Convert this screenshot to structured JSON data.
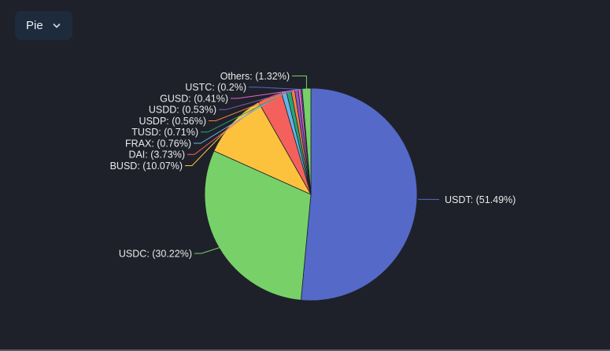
{
  "controls": {
    "chart_type_label": "Pie",
    "chevron_icon": "chevron-down"
  },
  "colors": {
    "background": "#1f212a",
    "button_bg": "#1e2b3d",
    "button_text": "#eceff3",
    "label_text": "#e8eaec",
    "bottom_bar": "#575c66"
  },
  "chart_data": {
    "type": "pie",
    "title": "",
    "legend": "none",
    "start_angle": "top",
    "direction": "clockwise",
    "center": [
      395,
      247
    ],
    "radius": 135,
    "label_format": "NAME: (VALUE%)",
    "items": [
      {
        "name": "USDT",
        "value": 51.49,
        "display": "USDT: (51.49%)",
        "color": "#5569c8"
      },
      {
        "name": "USDC",
        "value": 30.22,
        "display": "USDC: (30.22%)",
        "color": "#77d168"
      },
      {
        "name": "BUSD",
        "value": 10.07,
        "display": "BUSD: (10.07%)",
        "color": "#fcc23d"
      },
      {
        "name": "DAI",
        "value": 3.73,
        "display": "DAI: (3.73%)",
        "color": "#f4615d"
      },
      {
        "name": "FRAX",
        "value": 0.76,
        "display": "FRAX: (0.76%)",
        "color": "#62b6e7"
      },
      {
        "name": "TUSD",
        "value": 0.71,
        "display": "TUSD: (0.71%)",
        "color": "#27a478"
      },
      {
        "name": "USDP",
        "value": 0.56,
        "display": "USDP: (0.56%)",
        "color": "#f08244"
      },
      {
        "name": "USDD",
        "value": 0.53,
        "display": "USDD: (0.53%)",
        "color": "#9059bd"
      },
      {
        "name": "GUSD",
        "value": 0.41,
        "display": "GUSD: (0.41%)",
        "color": "#e365c9"
      },
      {
        "name": "USTC",
        "value": 0.2,
        "display": "USTC: (0.2%)",
        "color": "#5569c8"
      },
      {
        "name": "Others",
        "value": 1.32,
        "display": "Others: (1.32%)",
        "color": "#77d168"
      }
    ]
  }
}
